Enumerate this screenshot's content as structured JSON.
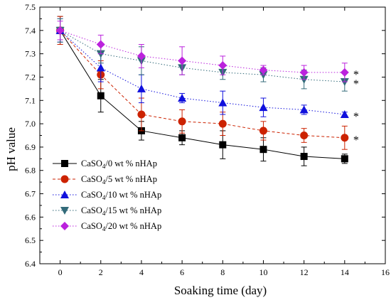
{
  "chart_data": {
    "type": "line",
    "title": "",
    "xlabel": "Soaking time (day)",
    "ylabel": "pH value",
    "xlim": [
      -1,
      16
    ],
    "ylim": [
      6.4,
      7.5
    ],
    "xticks": [
      0,
      2,
      4,
      6,
      8,
      10,
      12,
      14,
      16
    ],
    "yticks": [
      6.4,
      6.5,
      6.6,
      6.7,
      6.8,
      6.9,
      7.0,
      7.1,
      7.2,
      7.3,
      7.4,
      7.5
    ],
    "ytick_labels": [
      "6.4",
      "6.5",
      "6.6",
      "6.7",
      "6.8",
      "6.9",
      "7.0",
      "7.1",
      "7.2",
      "7.3",
      "7.4",
      "7.5"
    ],
    "grid": false,
    "legend_position": "lower-left",
    "x": [
      0,
      2,
      4,
      6,
      8,
      10,
      12,
      14
    ],
    "series": [
      {
        "name_main": "CaSO",
        "name_sub": "4",
        "name_rest": "/0 wt % nHAp",
        "color": "#000000",
        "marker": "square",
        "dash": "",
        "values": [
          7.4,
          7.12,
          6.97,
          6.94,
          6.91,
          6.89,
          6.86,
          6.85
        ],
        "errors": [
          0.06,
          0.07,
          0.04,
          0.03,
          0.06,
          0.05,
          0.04,
          0.02
        ],
        "annotation": ""
      },
      {
        "name_main": "CaSO",
        "name_sub": "4",
        "name_rest": "/5 wt % nHAp",
        "color": "#cc2200",
        "marker": "circle",
        "dash": "4,3",
        "values": [
          7.4,
          7.21,
          7.04,
          7.01,
          7.0,
          6.97,
          6.95,
          6.94
        ],
        "errors": [
          0.06,
          0.06,
          0.07,
          0.05,
          0.05,
          0.04,
          0.03,
          0.05
        ],
        "annotation": "*"
      },
      {
        "name_main": "CaSO",
        "name_sub": "4",
        "name_rest": "/10 wt % nHAp",
        "color": "#1010dd",
        "marker": "triangle-up",
        "dash": "1.5,2.5",
        "values": [
          7.4,
          7.24,
          7.15,
          7.11,
          7.09,
          7.07,
          7.06,
          7.04
        ],
        "errors": [
          0.05,
          0.06,
          0.06,
          0.02,
          0.05,
          0.04,
          0.02,
          0.01
        ],
        "annotation": "*"
      },
      {
        "name_main": "CaSO",
        "name_sub": "4",
        "name_rest": "/15 wt % nHAp",
        "color": "#336b7a",
        "marker": "triangle-down",
        "dash": "1.5,2.5",
        "values": [
          7.4,
          7.3,
          7.27,
          7.24,
          7.22,
          7.21,
          7.19,
          7.18
        ],
        "errors": [
          0.05,
          0.04,
          0.06,
          0.03,
          0.03,
          0.03,
          0.04,
          0.04
        ],
        "annotation": "*"
      },
      {
        "name_main": "CaSO",
        "name_sub": "4",
        "name_rest": "/20 wt % nHAp",
        "color": "#bb22dd",
        "marker": "diamond",
        "dash": "1.5,2.5",
        "values": [
          7.4,
          7.34,
          7.29,
          7.27,
          7.25,
          7.23,
          7.22,
          7.22
        ],
        "errors": [
          0.04,
          0.04,
          0.05,
          0.06,
          0.04,
          0.02,
          0.03,
          0.04
        ],
        "annotation": "*"
      }
    ]
  }
}
